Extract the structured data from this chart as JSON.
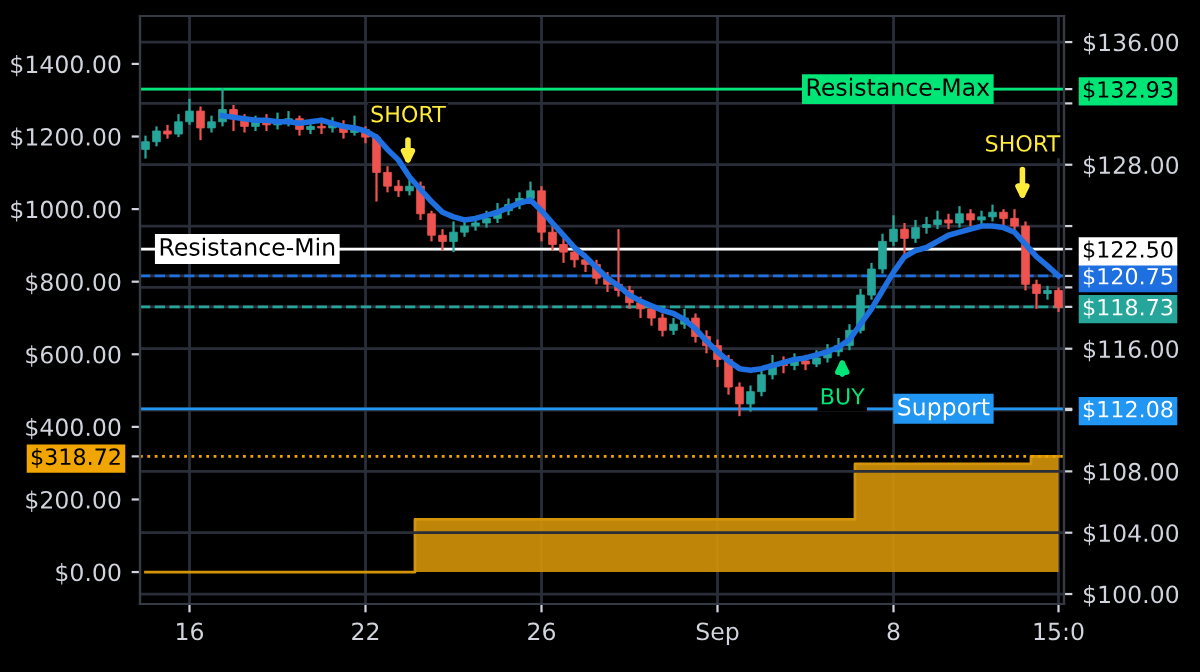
{
  "chart_data": {
    "type": "candlestick",
    "categories": [
      null,
      null,
      null,
      null,
      "16",
      null,
      null,
      null,
      null,
      null,
      null,
      null,
      null,
      null,
      null,
      null,
      null,
      null,
      null,
      null,
      "22",
      null,
      null,
      null,
      null,
      null,
      null,
      null,
      null,
      null,
      null,
      null,
      null,
      null,
      null,
      null,
      "26",
      null,
      null,
      null,
      null,
      null,
      null,
      null,
      null,
      null,
      null,
      null,
      null,
      null,
      null,
      null,
      "Sep",
      null,
      null,
      null,
      null,
      null,
      null,
      null,
      null,
      null,
      null,
      null,
      null,
      null,
      null,
      null,
      "8",
      null,
      null,
      null,
      null,
      null,
      null,
      null,
      null,
      null,
      null,
      null,
      null,
      null,
      null,
      "15:0"
    ],
    "series": [
      {
        "type": "area",
        "color": "#d4940a",
        "values": [
          0,
          0,
          0,
          0,
          0,
          0,
          0,
          0,
          0,
          0,
          0,
          0,
          0,
          0,
          0,
          0,
          0,
          0,
          0,
          0,
          0,
          0,
          0,
          0,
          0,
          145,
          145,
          145,
          145,
          145,
          145,
          145,
          145,
          145,
          145,
          145,
          145,
          145,
          145,
          145,
          145,
          145,
          145,
          145,
          145,
          145,
          145,
          145,
          145,
          145,
          145,
          145,
          145,
          145,
          145,
          145,
          145,
          145,
          145,
          145,
          145,
          145,
          145,
          145,
          145,
          298,
          298,
          298,
          298,
          298,
          298,
          298,
          298,
          298,
          298,
          298,
          298,
          298,
          298,
          298,
          298,
          318.72,
          318.72,
          318.72
        ]
      },
      {
        "axis": "y2",
        "ohlc": [
          [
            129.0,
            129.9,
            128.4,
            129.5
          ],
          [
            129.5,
            130.5,
            129.2,
            130.2
          ],
          [
            130.2,
            130.6,
            129.7,
            130.0
          ],
          [
            130.0,
            131.3,
            129.8,
            130.8
          ],
          [
            130.8,
            132.3,
            130.6,
            131.5
          ],
          [
            131.5,
            131.8,
            129.6,
            130.4
          ],
          [
            130.4,
            131.2,
            130.1,
            130.8
          ],
          [
            130.8,
            133.0,
            130.5,
            131.6
          ],
          [
            131.6,
            131.9,
            130.2,
            131.0
          ],
          [
            131.0,
            131.3,
            130.1,
            130.5
          ],
          [
            130.5,
            131.2,
            130.2,
            130.9
          ],
          [
            130.9,
            131.3,
            130.2,
            130.6
          ],
          [
            130.6,
            131.4,
            130.3,
            130.8
          ],
          [
            130.8,
            131.5,
            130.5,
            131.0
          ],
          [
            131.0,
            131.2,
            129.9,
            130.3
          ],
          [
            130.3,
            130.9,
            130.0,
            130.5
          ],
          [
            130.5,
            130.8,
            130.0,
            130.4
          ],
          [
            130.4,
            131.1,
            130.1,
            130.6
          ],
          [
            130.6,
            130.9,
            129.7,
            130.1
          ],
          [
            130.1,
            131.2,
            129.9,
            130.3
          ],
          [
            130.3,
            130.5,
            129.4,
            129.8
          ],
          [
            129.8,
            130.0,
            125.6,
            127.5
          ],
          [
            127.5,
            127.9,
            126.2,
            126.6
          ],
          [
            126.6,
            127.0,
            125.9,
            126.3
          ],
          [
            126.3,
            127.2,
            126.0,
            126.6
          ],
          [
            126.6,
            126.9,
            124.4,
            124.8
          ],
          [
            124.8,
            125.0,
            123.0,
            123.4
          ],
          [
            123.4,
            123.8,
            122.4,
            123.0
          ],
          [
            123.0,
            124.3,
            122.3,
            123.6
          ],
          [
            123.6,
            124.5,
            123.3,
            124.0
          ],
          [
            124.0,
            124.6,
            123.7,
            124.2
          ],
          [
            124.2,
            125.0,
            123.9,
            124.5
          ],
          [
            124.5,
            125.5,
            124.2,
            125.0
          ],
          [
            125.0,
            125.8,
            124.7,
            125.4
          ],
          [
            125.4,
            126.2,
            125.1,
            125.8
          ],
          [
            125.8,
            126.9,
            125.6,
            126.3
          ],
          [
            126.3,
            126.6,
            123.0,
            123.6
          ],
          [
            123.6,
            124.0,
            122.4,
            122.8
          ],
          [
            122.8,
            123.2,
            121.6,
            122.3
          ],
          [
            122.3,
            122.6,
            121.3,
            121.8
          ],
          [
            121.8,
            122.2,
            121.0,
            121.5
          ],
          [
            121.5,
            121.8,
            120.2,
            120.6
          ],
          [
            120.6,
            121.0,
            119.7,
            120.2
          ],
          [
            120.2,
            123.8,
            119.4,
            119.8
          ],
          [
            119.8,
            120.1,
            118.6,
            119.0
          ],
          [
            119.0,
            119.4,
            118.0,
            118.6
          ],
          [
            118.6,
            118.9,
            117.5,
            118.0
          ],
          [
            118.0,
            118.3,
            116.8,
            117.2
          ],
          [
            117.2,
            118.0,
            116.9,
            117.6
          ],
          [
            117.6,
            118.6,
            117.3,
            118.0
          ],
          [
            118.0,
            118.3,
            116.4,
            116.8
          ],
          [
            116.8,
            117.2,
            115.7,
            116.2
          ],
          [
            116.2,
            116.6,
            114.8,
            115.3
          ],
          [
            115.3,
            115.6,
            113.0,
            113.5
          ],
          [
            113.5,
            113.8,
            111.6,
            112.4
          ],
          [
            112.4,
            113.6,
            111.9,
            113.2
          ],
          [
            113.2,
            114.8,
            112.9,
            114.3
          ],
          [
            114.3,
            115.6,
            114.0,
            115.0
          ],
          [
            115.0,
            115.5,
            114.4,
            114.9
          ],
          [
            114.9,
            115.7,
            114.6,
            115.2
          ],
          [
            115.2,
            115.6,
            114.6,
            115.0
          ],
          [
            115.0,
            115.9,
            114.8,
            115.4
          ],
          [
            115.4,
            116.3,
            115.1,
            115.8
          ],
          [
            115.8,
            116.7,
            115.5,
            116.2
          ],
          [
            116.2,
            117.6,
            115.9,
            117.2
          ],
          [
            117.2,
            119.9,
            117.0,
            119.5
          ],
          [
            119.5,
            121.6,
            119.2,
            121.2
          ],
          [
            121.2,
            123.5,
            120.9,
            123.0
          ],
          [
            123.0,
            124.7,
            122.7,
            123.8
          ],
          [
            123.8,
            124.2,
            122.0,
            123.2
          ],
          [
            123.2,
            124.4,
            122.9,
            123.9
          ],
          [
            123.9,
            124.6,
            123.5,
            124.1
          ],
          [
            124.1,
            125.0,
            123.8,
            124.4
          ],
          [
            124.4,
            124.8,
            123.8,
            124.2
          ],
          [
            124.2,
            125.3,
            123.9,
            124.8
          ],
          [
            124.8,
            125.1,
            124.0,
            124.4
          ],
          [
            124.4,
            125.0,
            124.1,
            124.6
          ],
          [
            124.6,
            125.4,
            124.3,
            124.9
          ],
          [
            124.9,
            125.1,
            124.0,
            124.5
          ],
          [
            124.5,
            125.1,
            123.6,
            124.0
          ],
          [
            124.0,
            124.3,
            119.8,
            120.2
          ],
          [
            120.2,
            120.5,
            118.6,
            119.6
          ],
          [
            119.6,
            120.1,
            119.2,
            119.8
          ],
          [
            119.8,
            120.0,
            118.4,
            118.7
          ]
        ],
        "colors": [
          "#26a69a",
          "#26a69a",
          "#ef5350",
          "#26a69a",
          "#26a69a",
          "#ef5350",
          "#26a69a",
          "#26a69a",
          "#ef5350",
          "#ef5350",
          "#26a69a",
          "#ef5350",
          "#26a69a",
          "#26a69a",
          "#ef5350",
          "#26a69a",
          "#ef5350",
          "#26a69a",
          "#ef5350",
          "#26a69a",
          "#ef5350",
          "#ef5350",
          "#ef5350",
          "#ef5350",
          "#26a69a",
          "#ef5350",
          "#ef5350",
          "#ef5350",
          "#26a69a",
          "#26a69a",
          "#26a69a",
          "#26a69a",
          "#26a69a",
          "#26a69a",
          "#26a69a",
          "#26a69a",
          "#ef5350",
          "#ef5350",
          "#ef5350",
          "#ef5350",
          "#ef5350",
          "#ef5350",
          "#ef5350",
          "#ef5350",
          "#ef5350",
          "#ef5350",
          "#ef5350",
          "#ef5350",
          "#26a69a",
          "#26a69a",
          "#ef5350",
          "#ef5350",
          "#ef5350",
          "#ef5350",
          "#ef5350",
          "#26a69a",
          "#26a69a",
          "#26a69a",
          "#ef5350",
          "#26a69a",
          "#ef5350",
          "#26a69a",
          "#26a69a",
          "#26a69a",
          "#26a69a",
          "#26a69a",
          "#26a69a",
          "#26a69a",
          "#26a69a",
          "#ef5350",
          "#26a69a",
          "#26a69a",
          "#26a69a",
          "#ef5350",
          "#26a69a",
          "#ef5350",
          "#26a69a",
          "#26a69a",
          "#ef5350",
          "#ef5350",
          "#ef5350",
          "#ef5350",
          "#26a69a",
          "#ef5350"
        ]
      },
      {
        "type": "line",
        "axis": "y2",
        "color": "#1e6fe0",
        "values": [
          null,
          null,
          null,
          null,
          null,
          null,
          null,
          131.2,
          131.1,
          131.0,
          130.9,
          130.9,
          130.8,
          130.8,
          130.7,
          130.8,
          130.9,
          130.7,
          130.5,
          130.4,
          130.2,
          129.8,
          129.0,
          128.3,
          127.2,
          126.4,
          125.6,
          124.9,
          124.6,
          124.4,
          124.5,
          124.7,
          124.9,
          125.2,
          125.5,
          125.7,
          125.0,
          124.2,
          123.4,
          122.6,
          122.0,
          121.3,
          120.6,
          120.1,
          119.5,
          119.1,
          118.8,
          118.5,
          118.3,
          117.9,
          117.3,
          116.5,
          115.8,
          115.2,
          114.7,
          114.6,
          114.7,
          114.9,
          115.1,
          115.3,
          115.4,
          115.6,
          115.8,
          116.1,
          116.6,
          117.6,
          118.6,
          119.8,
          121.0,
          122.0,
          122.4,
          122.6,
          123.0,
          123.4,
          123.6,
          123.8,
          124.0,
          124.0,
          123.9,
          123.6,
          122.8,
          122.0,
          121.4,
          120.75
        ]
      }
    ],
    "ylim": [
      -88,
      1532
    ],
    "yticks": [
      {
        "value": 0,
        "label": "$0.00"
      },
      {
        "value": 200,
        "label": "$200.00"
      },
      {
        "value": 318.72,
        "label": "$318.72"
      },
      {
        "value": 400,
        "label": "$400.00"
      },
      {
        "value": 600,
        "label": "$600.00"
      },
      {
        "value": 800,
        "label": "$800.00"
      },
      {
        "value": 1000,
        "label": "$1000.00"
      },
      {
        "value": 1200,
        "label": "$1200.00"
      },
      {
        "value": 1400,
        "label": "$1400.00"
      }
    ],
    "y2lim": [
      99.35,
      137.7
    ],
    "y2ticks": [
      {
        "value": 100,
        "label": "$100.00"
      },
      {
        "value": 104,
        "label": "$104.00"
      },
      {
        "value": 108,
        "label": "$108.00"
      },
      {
        "value": 112,
        "label": null
      },
      {
        "value": 112.08,
        "label": "$112.08"
      },
      {
        "value": 116,
        "label": "$116.00"
      },
      {
        "value": 118.73,
        "label": "$118.73"
      },
      {
        "value": 120,
        "label": null
      },
      {
        "value": 120.75,
        "label": "$120.75"
      },
      {
        "value": 122.5,
        "label": "$122.50"
      },
      {
        "value": 124,
        "label": null
      },
      {
        "value": 128,
        "label": "$128.00"
      },
      {
        "value": 132,
        "label": null
      },
      {
        "value": 132.93,
        "label": "$132.93"
      },
      {
        "value": 136,
        "label": "$136.00"
      }
    ],
    "ref_lines": [
      {
        "axis": "y2",
        "value": 132.93,
        "label": "Resistance-Max",
        "color": "#00e676",
        "line_style": "solid"
      },
      {
        "axis": "y2",
        "value": 122.5,
        "label": "Resistance-Min",
        "color": "#ffffff",
        "line_style": "solid"
      },
      {
        "axis": "y2",
        "value": 120.75,
        "color": "#1e6fe0",
        "line_style": "dashed"
      },
      {
        "axis": "y2",
        "value": 118.73,
        "color": "#26a69a",
        "line_style": "dashed"
      },
      {
        "axis": "y2",
        "value": 112.08,
        "label": "Support",
        "color": "#2196f3",
        "line_style": "solid"
      },
      {
        "axis": "y",
        "value": 318.72,
        "color": "#f0a500",
        "line_style": "dotted"
      }
    ],
    "annotations": [
      "SHORT",
      "BUY",
      "SHORT"
    ],
    "grid": true
  }
}
